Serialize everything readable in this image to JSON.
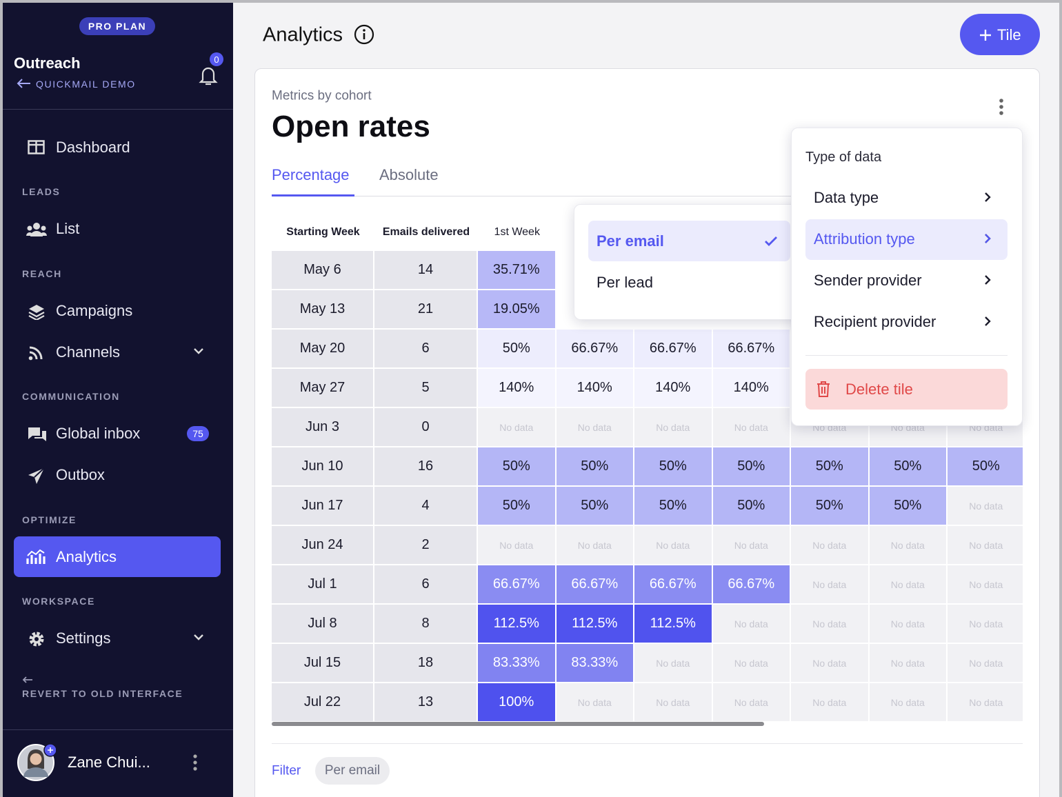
{
  "sidebar": {
    "plan": "PRO PLAN",
    "workspace": "Outreach",
    "back_link": "QUICKMAIL DEMO",
    "notifications": 0,
    "dashboard": "Dashboard",
    "sections": [
      {
        "title": "LEADS",
        "items": [
          {
            "label": "List"
          }
        ]
      },
      {
        "title": "REACH",
        "items": [
          {
            "label": "Campaigns"
          },
          {
            "label": "Channels"
          }
        ]
      },
      {
        "title": "COMMUNICATION",
        "items": [
          {
            "label": "Global inbox",
            "badge": 75
          },
          {
            "label": "Outbox"
          }
        ]
      },
      {
        "title": "OPTIMIZE",
        "items": [
          {
            "label": "Analytics"
          }
        ]
      },
      {
        "title": "WORKSPACE",
        "items": [
          {
            "label": "Settings"
          }
        ]
      }
    ],
    "revert": "REVERT TO OLD INTERFACE",
    "user": "Zane Chui..."
  },
  "header": {
    "title": "Analytics",
    "button": "Tile"
  },
  "card": {
    "subtitle": "Metrics by cohort",
    "title": "Open rates",
    "tabs": [
      "Percentage",
      "Absolute"
    ],
    "filter_label": "Filter",
    "filter_chip": "Per email"
  },
  "table": {
    "no_data_color": "#f1f1f4",
    "columns": [
      "Starting Week",
      "Emails delivered",
      "1st Week",
      null,
      null,
      null,
      null,
      null,
      null
    ],
    "rows": [
      {
        "week": "May 6",
        "emails": 14,
        "cells": [
          "35.71%",
          null,
          null,
          null,
          null,
          null,
          null
        ],
        "colors": [
          "#b7b8f7",
          null,
          null,
          null,
          null,
          null,
          null
        ]
      },
      {
        "week": "May 13",
        "emails": 21,
        "cells": [
          "19.05%",
          null,
          null,
          null,
          null,
          null,
          null
        ],
        "colors": [
          "#b7b8f7",
          null,
          null,
          null,
          null,
          null,
          null
        ]
      },
      {
        "week": "May 20",
        "emails": 6,
        "cells": [
          "50%",
          "66.67%",
          "66.67%",
          "66.67%",
          null,
          null,
          null
        ],
        "colors": [
          "#ededfd",
          "#ededfd",
          "#ededfd",
          "#ededfd",
          null,
          null,
          null
        ]
      },
      {
        "week": "May 27",
        "emails": 5,
        "cells": [
          "140%",
          "140%",
          "140%",
          "140%",
          null,
          null,
          null
        ],
        "colors": [
          "#f4f4fe",
          "#f4f4fe",
          "#f4f4fe",
          "#f4f4fe",
          null,
          null,
          null
        ]
      },
      {
        "week": "Jun 3",
        "emails": 0,
        "cells": [
          "No data",
          "No data",
          "No data",
          "No data",
          "No data",
          "No data",
          "No data"
        ],
        "colors": [
          "#f1f1f4",
          "#f1f1f4",
          "#f1f1f4",
          "#f1f1f4",
          "#f1f1f4",
          "#f1f1f4",
          "#f1f1f4"
        ]
      },
      {
        "week": "Jun 10",
        "emails": 16,
        "cells": [
          "50%",
          "50%",
          "50%",
          "50%",
          "50%",
          "50%",
          "50%"
        ],
        "colors": [
          "#b4b6f6",
          "#b4b6f6",
          "#b4b6f6",
          "#b4b6f6",
          "#b4b6f6",
          "#b4b6f6",
          "#b4b6f6"
        ]
      },
      {
        "week": "Jun 17",
        "emails": 4,
        "cells": [
          "50%",
          "50%",
          "50%",
          "50%",
          "50%",
          "50%",
          "No data"
        ],
        "colors": [
          "#b4b6f6",
          "#b4b6f6",
          "#b4b6f6",
          "#b4b6f6",
          "#b4b6f6",
          "#b4b6f6",
          "#f1f1f4"
        ]
      },
      {
        "week": "Jun 24",
        "emails": 2,
        "cells": [
          "No data",
          "No data",
          "No data",
          "No data",
          "No data",
          "No data",
          "No data"
        ],
        "colors": [
          "#f1f1f4",
          "#f1f1f4",
          "#f1f1f4",
          "#f1f1f4",
          "#f1f1f4",
          "#f1f1f4",
          "#f1f1f4"
        ]
      },
      {
        "week": "Jul 1",
        "emails": 6,
        "cells": [
          "66.67%",
          "66.67%",
          "66.67%",
          "66.67%",
          "No data",
          "No data",
          "No data"
        ],
        "colors": [
          "#8a8cf2",
          "#8a8cf2",
          "#8a8cf2",
          "#8a8cf2",
          "#f1f1f4",
          "#f1f1f4",
          "#f1f1f4"
        ]
      },
      {
        "week": "Jul 8",
        "emails": 8,
        "cells": [
          "112.5%",
          "112.5%",
          "112.5%",
          "No data",
          "No data",
          "No data",
          "No data"
        ],
        "colors": [
          "#5053ee",
          "#5053ee",
          "#5053ee",
          "#f1f1f4",
          "#f1f1f4",
          "#f1f1f4",
          "#f1f1f4"
        ]
      },
      {
        "week": "Jul 15",
        "emails": 18,
        "cells": [
          "83.33%",
          "83.33%",
          "No data",
          "No data",
          "No data",
          "No data",
          "No data"
        ],
        "colors": [
          "#8183f1",
          "#8183f1",
          "#f1f1f4",
          "#f1f1f4",
          "#f1f1f4",
          "#f1f1f4",
          "#f1f1f4"
        ]
      },
      {
        "week": "Jul 22",
        "emails": 13,
        "cells": [
          "100%",
          "No data",
          "No data",
          "No data",
          "No data",
          "No data",
          "No data"
        ],
        "colors": [
          "#4e51ee",
          "#f1f1f4",
          "#f1f1f4",
          "#f1f1f4",
          "#f1f1f4",
          "#f1f1f4",
          "#f1f1f4"
        ]
      }
    ]
  },
  "attribution_menu": {
    "items": [
      "Per email",
      "Per lead"
    ]
  },
  "tile_menu": {
    "heading": "Type of data",
    "items": [
      "Data type",
      "Attribution type",
      "Sender provider",
      "Recipient provider"
    ],
    "delete": "Delete tile"
  }
}
